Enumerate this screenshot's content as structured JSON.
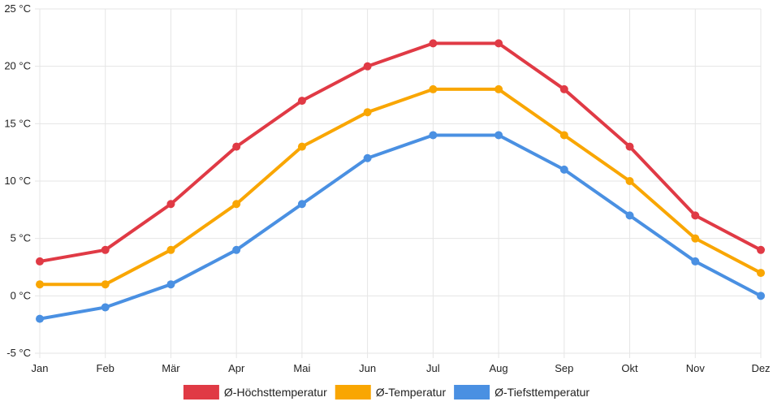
{
  "chart_data": {
    "type": "line",
    "categories": [
      "Jan",
      "Feb",
      "Mär",
      "Apr",
      "Mai",
      "Jun",
      "Jul",
      "Aug",
      "Sep",
      "Okt",
      "Nov",
      "Dez"
    ],
    "series": [
      {
        "name": "Ø-Höchsttemperatur",
        "color": "#e03a45",
        "values": [
          3,
          4,
          8,
          13,
          17,
          20,
          22,
          22,
          18,
          13,
          7,
          4
        ]
      },
      {
        "name": "Ø-Temperatur",
        "color": "#f9a602",
        "values": [
          1,
          1,
          4,
          8,
          13,
          16,
          18,
          18,
          14,
          10,
          5,
          2
        ]
      },
      {
        "name": "Ø-Tiefsttemperatur",
        "color": "#4a90e2",
        "values": [
          -2,
          -1,
          1,
          4,
          8,
          12,
          14,
          14,
          11,
          7,
          3,
          0
        ]
      }
    ],
    "ylim": [
      -5,
      25
    ],
    "yticks": [
      -5,
      0,
      5,
      10,
      15,
      20,
      25
    ],
    "ytick_labels": [
      "-5 °C",
      "0 °C",
      "5 °C",
      "10 °C",
      "15 °C",
      "20 °C",
      "25 °C"
    ],
    "grid": true,
    "legend_position": "bottom"
  }
}
